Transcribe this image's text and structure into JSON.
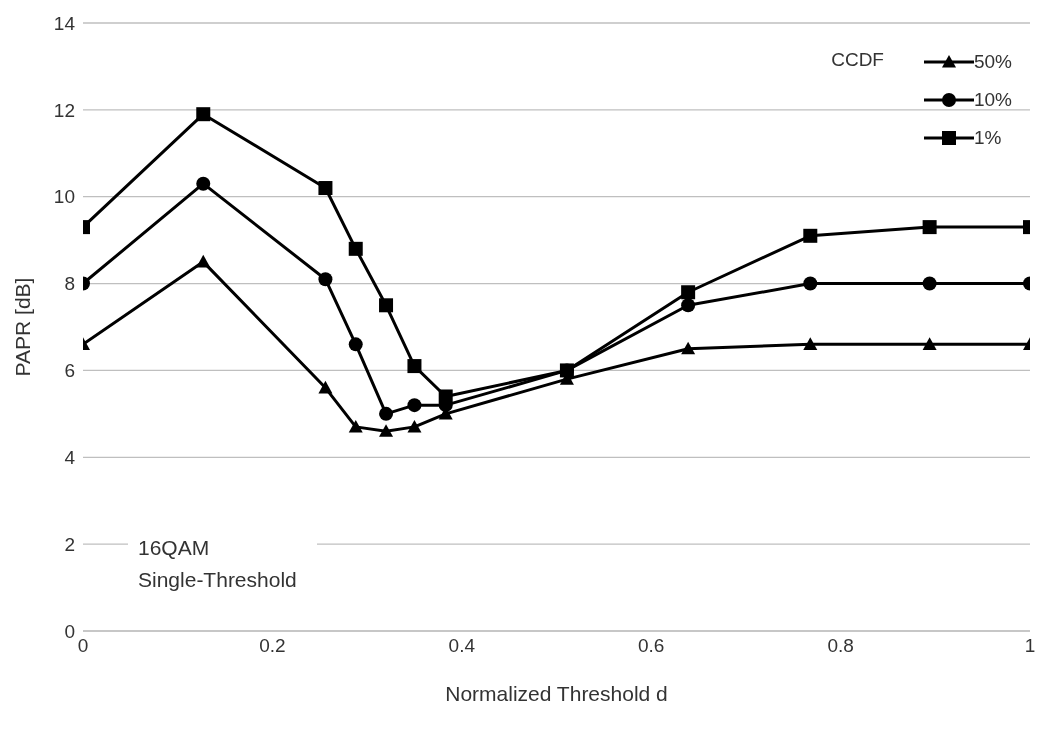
{
  "chart_data": {
    "type": "line",
    "xlabel": "Normalized Threshold d",
    "ylabel": "PAPR [dB]",
    "legend_title": "CCDF",
    "legend": "top right",
    "grid": "y",
    "line_style": "solid",
    "xlim": [
      0,
      1
    ],
    "xticks": [
      0,
      0.2,
      0.4,
      0.6,
      0.8,
      1
    ],
    "ylim": [
      0,
      14
    ],
    "yticks": [
      0,
      2,
      4,
      6,
      8,
      10,
      12,
      14
    ],
    "x": [
      0,
      0.127,
      0.256,
      0.288,
      0.32,
      0.35,
      0.383,
      0.511,
      0.639,
      0.768,
      0.894,
      1
    ],
    "series": [
      {
        "name": "50%",
        "color": "#000000",
        "marker": "triangle",
        "values": [
          6.6,
          8.5,
          5.6,
          4.7,
          4.6,
          4.7,
          5.0,
          5.8,
          6.5,
          6.6,
          6.6,
          6.6
        ]
      },
      {
        "name": "10%",
        "color": "#000000",
        "marker": "circle",
        "values": [
          8.0,
          10.3,
          8.1,
          6.6,
          5.0,
          5.2,
          5.2,
          6.0,
          7.5,
          8.0,
          8.0,
          8.0
        ]
      },
      {
        "name": "1%",
        "color": "#000000",
        "marker": "square",
        "values": [
          9.3,
          11.9,
          10.2,
          8.8,
          7.5,
          6.1,
          5.4,
          6.0,
          7.8,
          9.1,
          9.3,
          9.3
        ]
      }
    ],
    "annotations": [
      "16QAM\nSingle-Threshold"
    ]
  }
}
